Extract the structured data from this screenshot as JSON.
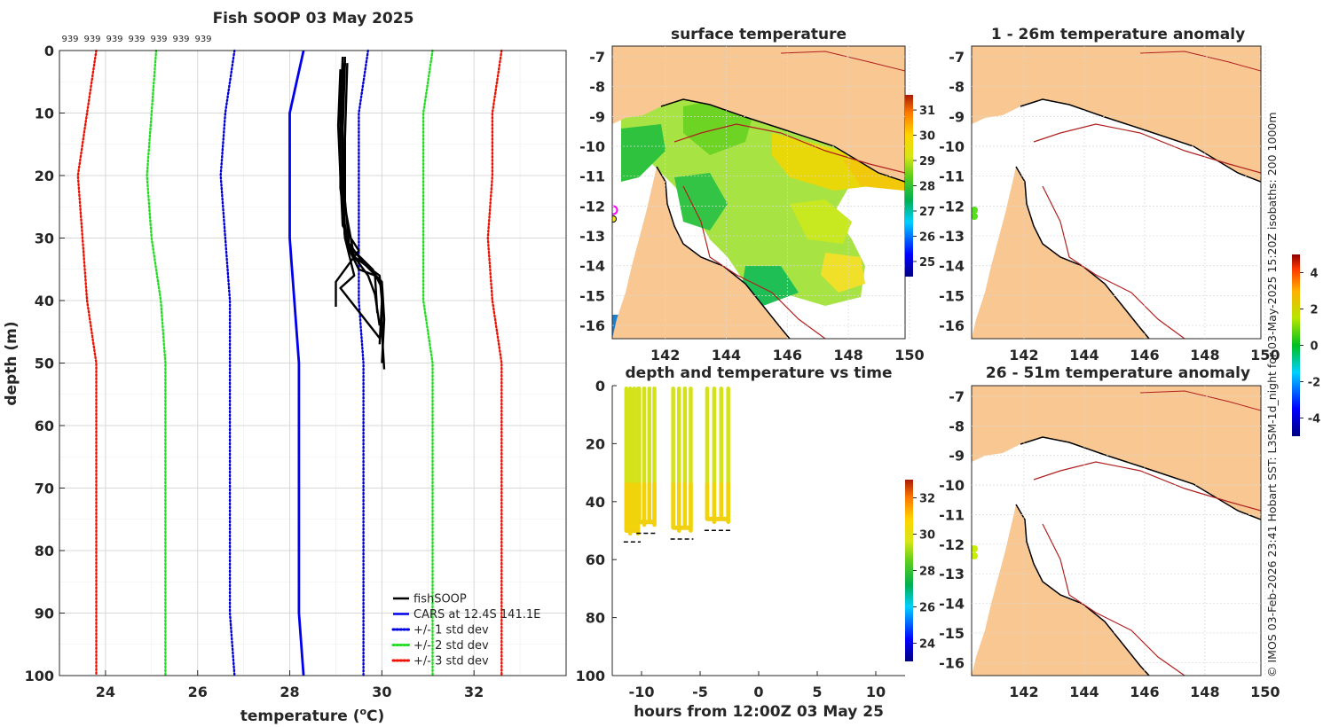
{
  "colors": {
    "fishsoop": "#000000",
    "cars": "#0000ee",
    "std1": "#0000dd",
    "std2": "#22dd22",
    "std3": "#ee1100",
    "land": "#f9c792",
    "isobath": "#b02020",
    "grid": "#d8d8d8"
  },
  "profile_chart": {
    "title": "Fish SOOP 03 May 2025",
    "xlabel": "temperature (",
    "xlabel_sup": "o",
    "xlabel_end": "C)",
    "ylabel": "depth (m)",
    "top_labels": [
      "939",
      "939",
      "939",
      "939",
      "939",
      "939",
      "939"
    ],
    "xticks": [
      "24",
      "26",
      "28",
      "30",
      "32"
    ],
    "yticks": [
      "0",
      "10",
      "20",
      "30",
      "40",
      "50",
      "60",
      "70",
      "80",
      "90",
      "100"
    ],
    "legend": [
      "fishSOOP",
      "CARS at 12.4S 141.1E",
      "+/- 1 std dev",
      "+/- 2 std dev",
      "+/- 3 std dev"
    ]
  },
  "chart_data": [
    {
      "type": "line",
      "title": "Fish SOOP 03 May 2025",
      "xlabel": "temperature (oC)",
      "ylabel": "depth (m)",
      "xlim": [
        23,
        34
      ],
      "ylim": [
        100,
        0
      ],
      "depths": [
        0,
        10,
        20,
        30,
        40,
        50,
        60,
        70,
        80,
        90,
        100
      ],
      "series": [
        {
          "name": "CARS at 12.4S 141.1E",
          "style": "solid",
          "values": [
            28.3,
            28.0,
            28.0,
            28.0,
            28.1,
            28.2,
            28.2,
            28.2,
            28.2,
            28.2,
            28.3
          ]
        },
        {
          "name": "+/- 1 std dev low",
          "style": "dotted",
          "values": [
            26.8,
            26.6,
            26.5,
            26.6,
            26.7,
            26.7,
            26.7,
            26.7,
            26.7,
            26.7,
            26.8
          ]
        },
        {
          "name": "+/- 1 std dev high",
          "style": "dotted",
          "values": [
            29.7,
            29.5,
            29.5,
            29.5,
            29.5,
            29.6,
            29.6,
            29.6,
            29.6,
            29.6,
            29.6
          ]
        },
        {
          "name": "+/- 2 std dev low",
          "style": "dotted",
          "values": [
            25.1,
            25.0,
            24.9,
            25.0,
            25.2,
            25.3,
            25.3,
            25.3,
            25.3,
            25.3,
            25.3
          ]
        },
        {
          "name": "+/- 2 std dev high",
          "style": "dotted",
          "values": [
            31.1,
            30.9,
            30.9,
            30.9,
            30.9,
            31.1,
            31.1,
            31.1,
            31.1,
            31.1,
            31.1
          ]
        },
        {
          "name": "+/- 3 std dev low",
          "style": "dotted",
          "values": [
            23.8,
            23.6,
            23.4,
            23.5,
            23.6,
            23.8,
            23.8,
            23.8,
            23.8,
            23.8,
            23.8
          ]
        },
        {
          "name": "+/- 3 std dev high",
          "style": "dotted",
          "values": [
            32.6,
            32.4,
            32.4,
            32.3,
            32.4,
            32.6,
            32.6,
            32.6,
            32.6,
            32.6,
            32.6
          ]
        }
      ],
      "fishsoop_profiles": [
        {
          "depth": [
            1,
            10,
            20,
            30,
            33,
            36,
            40,
            47
          ],
          "temp": [
            29.2,
            29.15,
            29.15,
            29.2,
            29.4,
            29.95,
            30.0,
            29.95
          ]
        },
        {
          "depth": [
            2,
            10,
            20,
            30,
            34,
            37,
            43,
            50
          ],
          "temp": [
            29.15,
            29.1,
            29.1,
            29.2,
            29.6,
            30.0,
            30.05,
            30.0
          ]
        },
        {
          "depth": [
            1.5,
            12,
            22,
            31,
            35,
            38,
            45,
            51
          ],
          "temp": [
            29.2,
            29.1,
            29.1,
            29.25,
            29.8,
            30.0,
            30.0,
            30.05
          ]
        },
        {
          "depth": [
            2,
            14,
            24,
            32,
            35,
            36,
            42
          ],
          "temp": [
            29.25,
            29.2,
            29.2,
            29.3,
            29.5,
            29.85,
            29.9
          ]
        },
        {
          "depth": [
            3,
            12,
            20,
            28,
            32,
            37,
            41
          ],
          "temp": [
            29.1,
            29.05,
            29.1,
            29.15,
            29.5,
            29.0,
            29.0
          ]
        },
        {
          "depth": [
            1,
            10,
            18,
            30,
            36,
            38,
            46
          ],
          "temp": [
            29.15,
            29.1,
            29.1,
            29.2,
            29.4,
            29.1,
            29.95
          ]
        },
        {
          "depth": [
            2,
            13,
            25,
            33,
            36,
            39,
            44
          ],
          "temp": [
            29.2,
            29.15,
            29.2,
            29.4,
            29.7,
            29.85,
            29.95
          ]
        }
      ]
    },
    {
      "type": "scatter",
      "title": "depth and temperature vs time",
      "xlabel": "hours from 12:00Z 03 May 25",
      "ylabel": "",
      "xlim": [
        -12.5,
        12.5
      ],
      "ylim": [
        100,
        0
      ],
      "xticks": [
        "-10",
        "-5",
        "0",
        "5",
        "10"
      ],
      "yticks": [
        "0",
        "20",
        "40",
        "60",
        "80",
        "100"
      ],
      "colorbar": {
        "ticks": [
          "24",
          "26",
          "28",
          "30",
          "32"
        ],
        "range": [
          23,
          33
        ]
      },
      "casts": [
        {
          "t_start": -11.3,
          "t_end": -10.3,
          "max_depth": 53
        },
        {
          "t_start": -10.2,
          "t_end": -8.9,
          "max_depth": 50
        },
        {
          "t_start": -7.3,
          "t_end": -5.8,
          "max_depth": 52
        },
        {
          "t_start": -4.4,
          "t_end": -2.6,
          "max_depth": 49
        }
      ],
      "color_note": "yellow-green, ~29-30 C throughout"
    }
  ],
  "sst_map": {
    "title": "surface temperature",
    "lat_ticks": [
      "-7",
      "-8",
      "-9",
      "-10",
      "-11",
      "-12",
      "-13",
      "-14",
      "-15",
      "-16"
    ],
    "lon_ticks": [
      "142",
      "144",
      "146",
      "148",
      "150"
    ],
    "colorbar_ticks": [
      "25",
      "26",
      "27",
      "28",
      "29",
      "30",
      "31"
    ]
  },
  "time_chart": {
    "title": "depth and temperature vs time",
    "xlabel": "hours from 12:00Z 03 May 25"
  },
  "anom1_map": {
    "title": "1 - 26m temperature anomaly",
    "lat_ticks": [
      "-7",
      "-8",
      "-9",
      "-10",
      "-11",
      "-12",
      "-13",
      "-14",
      "-15",
      "-16"
    ],
    "lon_ticks": [
      "142",
      "144",
      "146",
      "148",
      "150"
    ]
  },
  "anom2_map": {
    "title": "26 - 51m temperature anomaly",
    "lat_ticks": [
      "-7",
      "-8",
      "-9",
      "-10",
      "-11",
      "-12",
      "-13",
      "-14",
      "-15",
      "-16"
    ],
    "lon_ticks": [
      "142",
      "144",
      "146",
      "148",
      "150"
    ]
  },
  "anomaly_colorbar": {
    "ticks": [
      "4",
      "2",
      "0",
      "-2",
      "-4"
    ]
  },
  "side_note": "© IMOS 03-Feb-2026 23:41 Hobart SST: L3SM-1d_night for 03-May-2025 15:20Z isobaths: 200  1000m"
}
